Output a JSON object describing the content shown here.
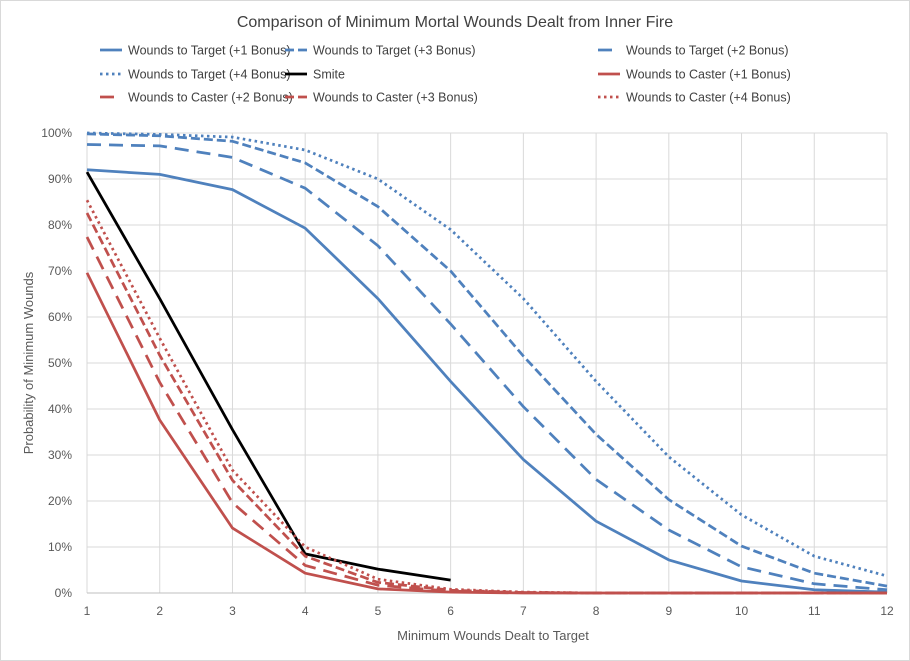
{
  "chart_data": {
    "type": "line",
    "title": "Comparison of  Minimum Mortal Wounds Dealt from Inner Fire",
    "xlabel": "Minimum Wounds Dealt to Target",
    "ylabel": "Probability of Minimum Wounds",
    "x": [
      1,
      2,
      3,
      4,
      5,
      6,
      7,
      8,
      9,
      10,
      11,
      12
    ],
    "xlim": [
      1,
      12
    ],
    "ylim": [
      0,
      1
    ],
    "y_ticks": [
      "0%",
      "10%",
      "20%",
      "30%",
      "40%",
      "50%",
      "60%",
      "70%",
      "80%",
      "90%",
      "100%"
    ],
    "x_ticks": [
      "1",
      "2",
      "3",
      "4",
      "5",
      "6",
      "7",
      "8",
      "9",
      "10",
      "11",
      "12"
    ],
    "grid": true,
    "legend_position": "top",
    "series": [
      {
        "name": "Wounds to Target (+1 Bonus)",
        "color": "#4f81bd",
        "style": "solid",
        "values": [
          0.92,
          0.91,
          0.877,
          0.793,
          0.64,
          0.46,
          0.29,
          0.156,
          0.072,
          0.026,
          0.007,
          0.002
        ]
      },
      {
        "name": "Wounds to Target (+3 Bonus)",
        "color": "#4f81bd",
        "style": "dash",
        "values": [
          0.998,
          0.994,
          0.982,
          0.935,
          0.84,
          0.7,
          0.515,
          0.345,
          0.203,
          0.102,
          0.043,
          0.015
        ]
      },
      {
        "name": "Wounds to Target (+2 Bonus)",
        "color": "#4f81bd",
        "style": "longdash",
        "values": [
          0.975,
          0.972,
          0.947,
          0.88,
          0.755,
          0.585,
          0.405,
          0.247,
          0.137,
          0.057,
          0.02,
          0.007
        ]
      },
      {
        "name": "Wounds to Target (+4 Bonus)",
        "color": "#4f81bd",
        "style": "dot",
        "values": [
          1.0,
          0.997,
          0.991,
          0.963,
          0.9,
          0.79,
          0.64,
          0.46,
          0.296,
          0.17,
          0.08,
          0.037
        ]
      },
      {
        "name": "Smite",
        "color": "#000000",
        "style": "solid",
        "values": [
          0.915,
          0.64,
          0.355,
          0.085,
          0.052,
          0.028,
          null,
          null,
          null,
          null,
          null,
          null
        ]
      },
      {
        "name": "Wounds to Caster (+1 Bonus)",
        "color": "#c0504d",
        "style": "solid",
        "values": [
          0.696,
          0.376,
          0.141,
          0.043,
          0.009,
          0.002,
          0.0,
          0.0,
          0.0,
          0.0,
          0.0,
          0.0
        ]
      },
      {
        "name": "Wounds to Caster (+2 Bonus)",
        "color": "#c0504d",
        "style": "longdash",
        "values": [
          0.774,
          0.458,
          0.196,
          0.06,
          0.017,
          0.004,
          0.001,
          0.0,
          0.0,
          0.0,
          0.0,
          0.0
        ]
      },
      {
        "name": "Wounds to Caster (+3 Bonus)",
        "color": "#c0504d",
        "style": "dash",
        "values": [
          0.826,
          0.517,
          0.245,
          0.08,
          0.023,
          0.006,
          0.001,
          0.0,
          0.0,
          0.0,
          0.0,
          0.0
        ]
      },
      {
        "name": "Wounds to Caster (+4 Bonus)",
        "color": "#c0504d",
        "style": "dot",
        "values": [
          0.854,
          0.554,
          0.267,
          0.1,
          0.03,
          0.008,
          0.002,
          0.0,
          0.0,
          0.0,
          0.0,
          0.0
        ]
      }
    ]
  }
}
